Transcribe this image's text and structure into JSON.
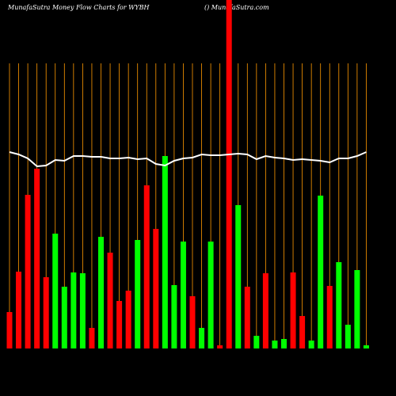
{
  "chart_data": {
    "type": "bar",
    "title": "MunafaSutra  Money Flow  Charts for WYBH",
    "subtitle": "() MunafaSutra.com",
    "ylim": [
      0,
      440
    ],
    "grid_color": "#ff9900",
    "bars": {
      "values": [
        46,
        97,
        194,
        227,
        90,
        145,
        78,
        96,
        95,
        26,
        141,
        121,
        60,
        73,
        137,
        206,
        151,
        243,
        80,
        135,
        66,
        26,
        135,
        4,
        440,
        181,
        78,
        16,
        95,
        10,
        12,
        96,
        41,
        10,
        193,
        79,
        109,
        30,
        99,
        4
      ],
      "colors": [
        "#ff0000",
        "#ff0000",
        "#ff0000",
        "#ff0000",
        "#ff0000",
        "#00ff00",
        "#00ff00",
        "#00ff00",
        "#00ff00",
        "#ff0000",
        "#00ff00",
        "#ff0000",
        "#ff0000",
        "#ff0000",
        "#00ff00",
        "#ff0000",
        "#ff0000",
        "#00ff00",
        "#00ff00",
        "#00ff00",
        "#ff0000",
        "#00ff00",
        "#00ff00",
        "#ff0000",
        "#ff0000",
        "#00ff00",
        "#ff0000",
        "#00ff00",
        "#ff0000",
        "#00ff00",
        "#00ff00",
        "#ff0000",
        "#ff0000",
        "#00ff00",
        "#00ff00",
        "#ff0000",
        "#00ff00",
        "#00ff00",
        "#00ff00",
        "#00ff00"
      ]
    },
    "line": {
      "color": "#ffffff",
      "values": [
        248,
        245,
        240,
        230,
        231,
        238,
        237,
        243,
        243,
        242,
        242,
        240,
        240,
        241,
        239,
        240,
        233,
        231,
        237,
        240,
        241,
        245,
        244,
        244,
        245,
        246,
        245,
        239,
        243,
        241,
        240,
        238,
        239,
        238,
        237,
        235,
        240,
        240,
        243,
        248
      ]
    }
  }
}
